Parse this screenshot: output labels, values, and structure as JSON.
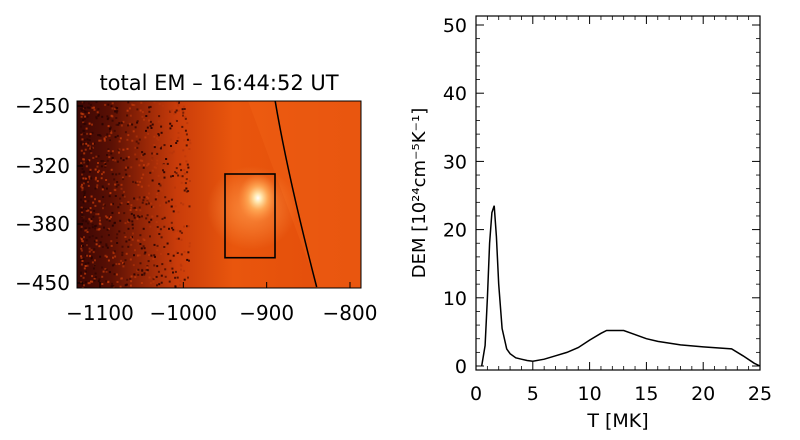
{
  "chart_data": [
    {
      "type": "heatmap",
      "title": "total EM – 16:44:52 UT",
      "xlabel": "",
      "ylabel": "",
      "xlim": [
        -1100,
        -800
      ],
      "ylim": [
        -450,
        -250
      ],
      "x_ticks": [
        -1100,
        -1000,
        -900,
        -800
      ],
      "y_ticks": [
        -250,
        -320,
        -380,
        -450
      ],
      "colormap": [
        "#3a0604",
        "#7a1a06",
        "#c63a0a",
        "#e9560d",
        "#ff9a3a",
        "#ffe8b0",
        "#ffffff"
      ],
      "limb_curve": {
        "x": [
          -890,
          -870,
          -840
        ],
        "y": [
          -250,
          -340,
          -450
        ]
      },
      "region_box": {
        "x": [
          -950,
          -890
        ],
        "y": [
          -320,
          -420
        ]
      },
      "bright_source": {
        "x": -920,
        "y": -345
      }
    },
    {
      "type": "line",
      "title": "",
      "xlabel": "T [MK]",
      "ylabel": "DEM [10²⁴cm⁻⁵K⁻¹]",
      "xlim": [
        0,
        25
      ],
      "ylim": [
        0,
        50
      ],
      "x_ticks": [
        0,
        5,
        10,
        15,
        20,
        25
      ],
      "y_ticks": [
        0,
        10,
        20,
        30,
        40,
        50
      ],
      "series": [
        {
          "x": [
            0.5,
            0.8,
            1.0,
            1.2,
            1.4,
            1.6,
            1.8,
            2.0,
            2.3,
            2.7,
            3.0,
            3.5,
            4.0,
            4.5,
            5.0,
            6.0,
            7.0,
            8.0,
            9.0,
            10.0,
            11.0,
            11.5,
            12.0,
            13.0,
            14.0,
            15.0,
            16.0,
            18.0,
            20.0,
            22.5,
            23.5,
            24.5,
            25.0
          ],
          "y": [
            0.0,
            3.0,
            10.0,
            18.0,
            22.5,
            23.5,
            19.0,
            12.0,
            5.5,
            2.5,
            1.8,
            1.2,
            1.0,
            0.8,
            0.7,
            1.0,
            1.5,
            2.0,
            2.7,
            3.8,
            4.8,
            5.2,
            5.2,
            5.2,
            4.6,
            4.0,
            3.6,
            3.1,
            2.8,
            2.5,
            1.5,
            0.4,
            0.0
          ]
        }
      ]
    }
  ]
}
